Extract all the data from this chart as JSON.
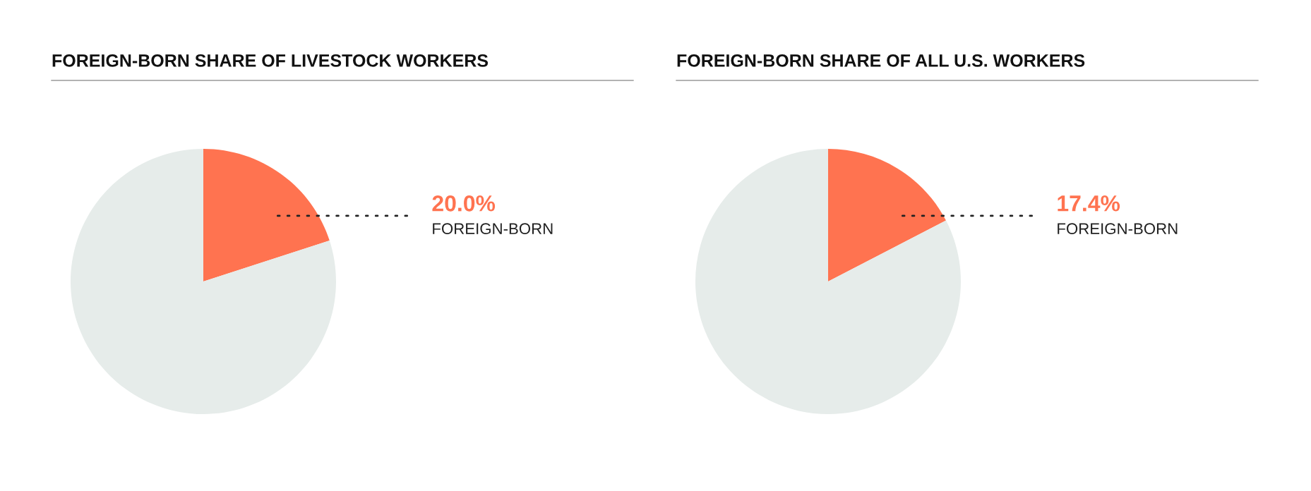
{
  "chart_data": [
    {
      "type": "pie",
      "title": "FOREIGN-BORN SHARE OF LIVESTOCK WORKERS",
      "categories": [
        "FOREIGN-BORN",
        null
      ],
      "values": [
        20.0,
        80.0
      ],
      "colors": [
        "#ff7350",
        "#e6ecea"
      ],
      "value_labels": [
        "20.0%",
        null
      ]
    },
    {
      "type": "pie",
      "title": "FOREIGN-BORN SHARE OF ALL U.S. WORKERS",
      "categories": [
        "FOREIGN-BORN",
        null
      ],
      "values": [
        17.4,
        82.6
      ],
      "colors": [
        "#ff7350",
        "#e6ecea"
      ],
      "value_labels": [
        "17.4%",
        null
      ]
    }
  ]
}
